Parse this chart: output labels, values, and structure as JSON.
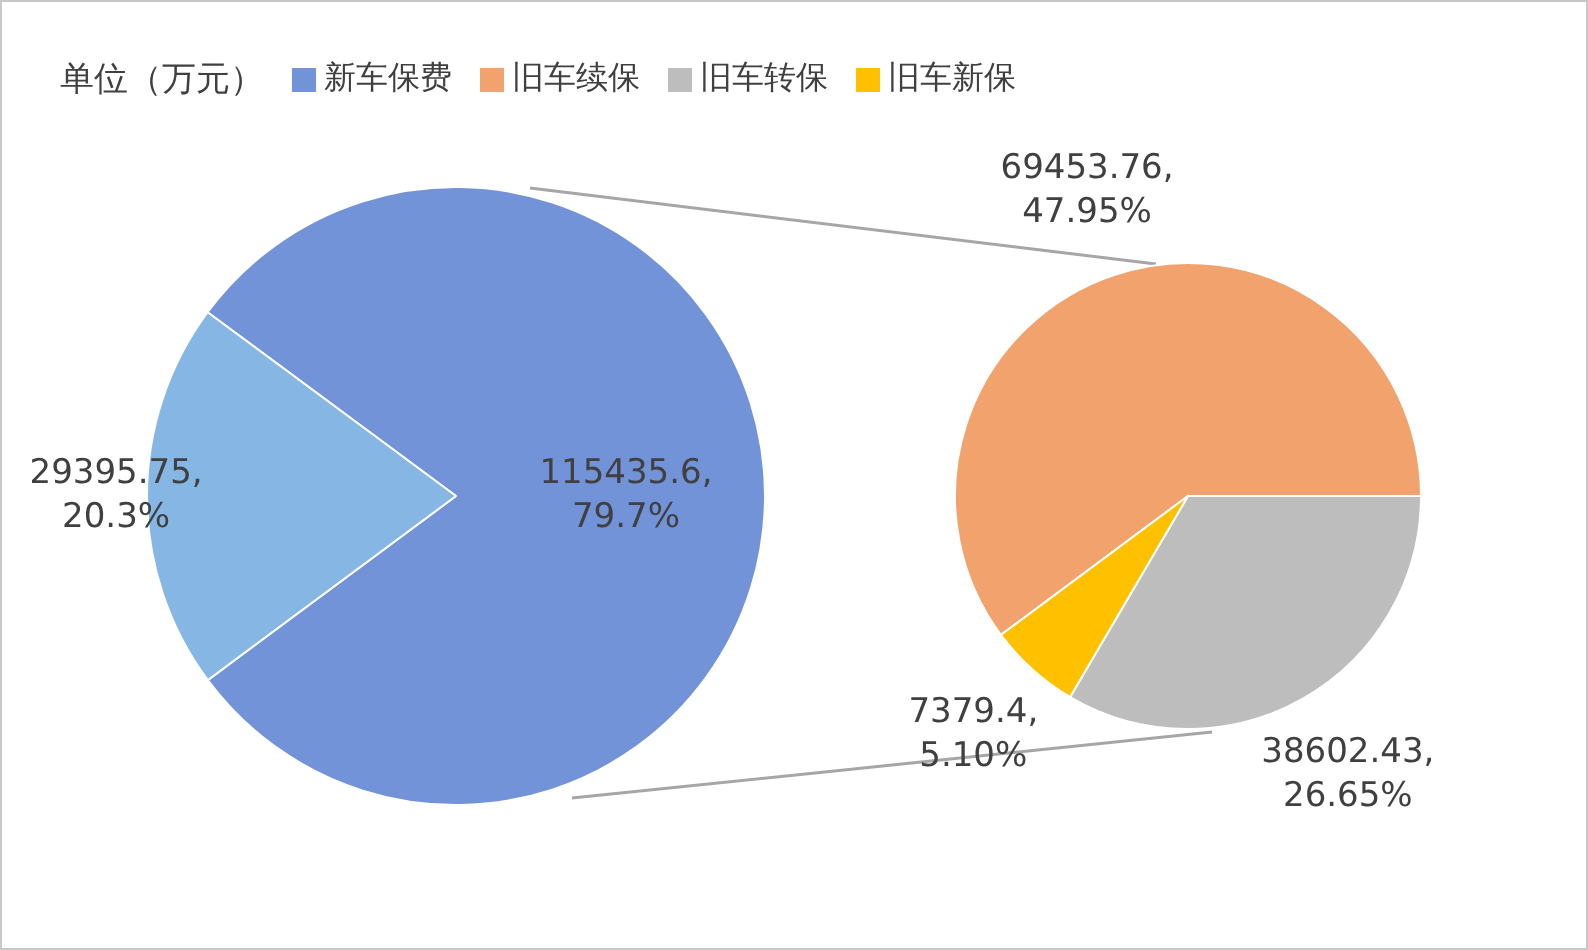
{
  "chart_data": [
    {
      "type": "pie",
      "title": "单位（万元）",
      "legend": "top",
      "categories": [
        "新车保费",
        null
      ],
      "values": [
        115435.6,
        29395.75
      ],
      "colors": [
        "#7393d8",
        "#86b6e3"
      ],
      "value_labels": [
        "115435.6, 79.7%",
        "29395.75, 20.3%"
      ]
    },
    {
      "type": "pie",
      "legend": "top",
      "categories": [
        "旧车续保",
        "旧车转保",
        "旧车新保"
      ],
      "values": [
        69453.76,
        38602.43,
        7379.4
      ],
      "colors": [
        "#f2a26c",
        "#bdbdbd",
        "#ffc000"
      ],
      "value_labels": [
        "69453.76, 47.95%",
        "38602.43, 26.65%",
        "7379.4, 5.10%"
      ]
    }
  ]
}
